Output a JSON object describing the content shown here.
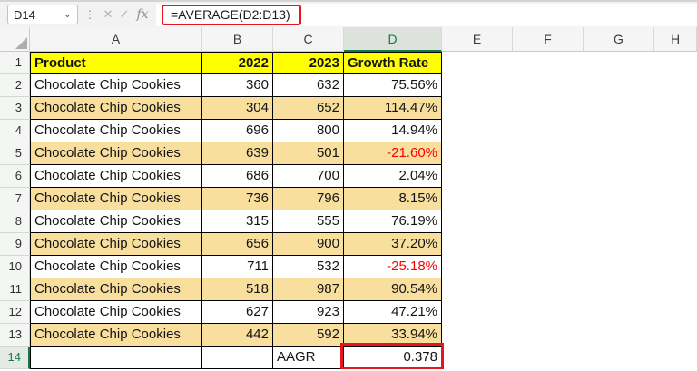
{
  "formula_bar": {
    "name_box_value": "D14",
    "cancel_icon": "✕",
    "enter_icon": "✓",
    "fx_icon": "fx",
    "chevron_icon": "⌄",
    "dots_icon": "⋮",
    "formula": "=AVERAGE(D2:D13)"
  },
  "colors": {
    "fills": {
      "yellow": "#FFFF00",
      "tan": "#F8DF9E",
      "white": "#FFFFFF"
    },
    "negative_text": "#FF0000",
    "selection_green": "#107C41",
    "annotation_red": "#E9151D"
  },
  "sheet": {
    "column_headers": [
      "A",
      "B",
      "C",
      "D",
      "E",
      "F",
      "G",
      "H"
    ],
    "selected_cell": "D14",
    "selected_column": "D",
    "selected_row": 14,
    "table_column_count": 4,
    "rows": [
      {
        "n": 1,
        "fill": "yellow",
        "bold": true,
        "cells": [
          "Product",
          "2022",
          "2023",
          "Growth Rate"
        ]
      },
      {
        "n": 2,
        "fill": "white",
        "bold": false,
        "cells": [
          "Chocolate Chip Cookies",
          "360",
          "632",
          "75.56%"
        ]
      },
      {
        "n": 3,
        "fill": "tan",
        "bold": false,
        "cells": [
          "Chocolate Chip Cookies",
          "304",
          "652",
          "114.47%"
        ]
      },
      {
        "n": 4,
        "fill": "white",
        "bold": false,
        "cells": [
          "Chocolate Chip Cookies",
          "696",
          "800",
          "14.94%"
        ]
      },
      {
        "n": 5,
        "fill": "tan",
        "bold": false,
        "cells": [
          "Chocolate Chip Cookies",
          "639",
          "501",
          "-21.60%"
        ]
      },
      {
        "n": 6,
        "fill": "white",
        "bold": false,
        "cells": [
          "Chocolate Chip Cookies",
          "686",
          "700",
          "2.04%"
        ]
      },
      {
        "n": 7,
        "fill": "tan",
        "bold": false,
        "cells": [
          "Chocolate Chip Cookies",
          "736",
          "796",
          "8.15%"
        ]
      },
      {
        "n": 8,
        "fill": "white",
        "bold": false,
        "cells": [
          "Chocolate Chip Cookies",
          "315",
          "555",
          "76.19%"
        ]
      },
      {
        "n": 9,
        "fill": "tan",
        "bold": false,
        "cells": [
          "Chocolate Chip Cookies",
          "656",
          "900",
          "37.20%"
        ]
      },
      {
        "n": 10,
        "fill": "white",
        "bold": false,
        "cells": [
          "Chocolate Chip Cookies",
          "711",
          "532",
          "-25.18%"
        ]
      },
      {
        "n": 11,
        "fill": "tan",
        "bold": false,
        "cells": [
          "Chocolate Chip Cookies",
          "518",
          "987",
          "90.54%"
        ]
      },
      {
        "n": 12,
        "fill": "white",
        "bold": false,
        "cells": [
          "Chocolate Chip Cookies",
          "627",
          "923",
          "47.21%"
        ]
      },
      {
        "n": 13,
        "fill": "tan",
        "bold": false,
        "cells": [
          "Chocolate Chip Cookies",
          "442",
          "592",
          "33.94%"
        ]
      },
      {
        "n": 14,
        "fill": "white",
        "bold": false,
        "cells": [
          "",
          "",
          "AAGR",
          "0.378"
        ]
      }
    ]
  }
}
